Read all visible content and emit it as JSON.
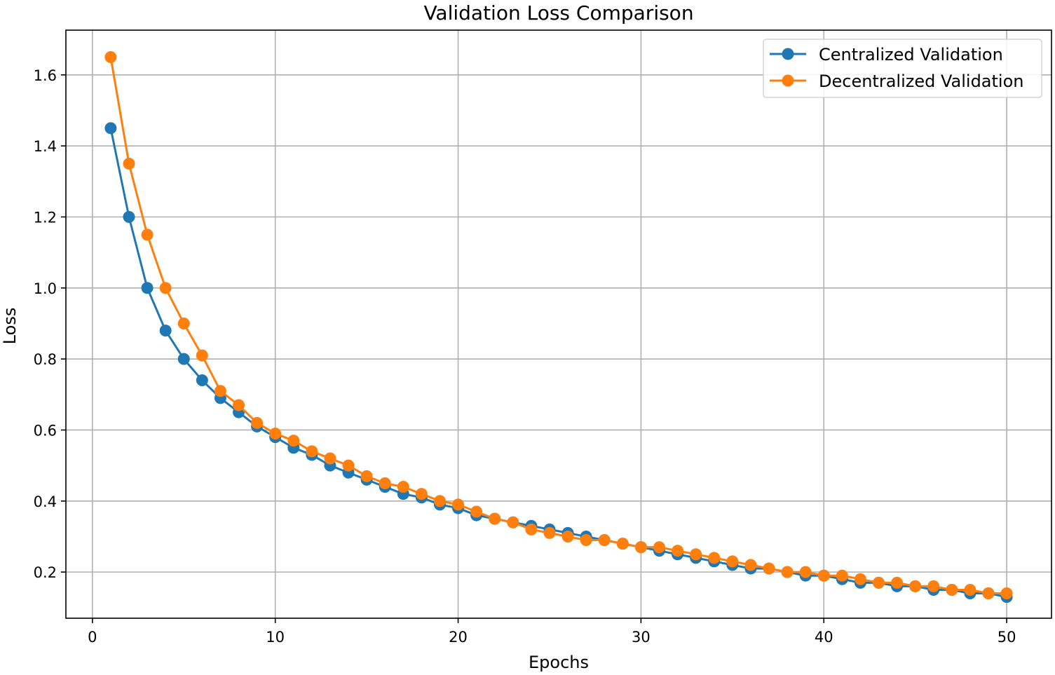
{
  "chart_data": {
    "type": "line",
    "title": "Validation Loss Comparison",
    "xlabel": "Epochs",
    "ylabel": "Loss",
    "xlim": [
      -1.45,
      52.45
    ],
    "ylim": [
      0.07,
      1.726
    ],
    "xticks": [
      0,
      10,
      20,
      30,
      40,
      50
    ],
    "xtick_labels": [
      "0",
      "10",
      "20",
      "30",
      "40",
      "50"
    ],
    "yticks": [
      0.2,
      0.4,
      0.6,
      0.8,
      1.0,
      1.2,
      1.4,
      1.6
    ],
    "ytick_labels": [
      "0.2",
      "0.4",
      "0.6",
      "0.8",
      "1.0",
      "1.2",
      "1.4",
      "1.6"
    ],
    "grid": true,
    "legend_position": "top-right",
    "x": [
      1,
      2,
      3,
      4,
      5,
      6,
      7,
      8,
      9,
      10,
      11,
      12,
      13,
      14,
      15,
      16,
      17,
      18,
      19,
      20,
      21,
      22,
      23,
      24,
      25,
      26,
      27,
      28,
      29,
      30,
      31,
      32,
      33,
      34,
      35,
      36,
      37,
      38,
      39,
      40,
      41,
      42,
      43,
      44,
      45,
      46,
      47,
      48,
      49,
      50
    ],
    "series": [
      {
        "name": "Centralized Validation",
        "color": "#1f77b4",
        "values": [
          1.45,
          1.2,
          1.0,
          0.88,
          0.8,
          0.74,
          0.69,
          0.65,
          0.61,
          0.58,
          0.55,
          0.53,
          0.5,
          0.48,
          0.46,
          0.44,
          0.42,
          0.41,
          0.39,
          0.38,
          0.36,
          0.35,
          0.34,
          0.33,
          0.32,
          0.31,
          0.3,
          0.29,
          0.28,
          0.27,
          0.26,
          0.25,
          0.24,
          0.23,
          0.22,
          0.21,
          0.21,
          0.2,
          0.19,
          0.19,
          0.18,
          0.17,
          0.17,
          0.16,
          0.16,
          0.15,
          0.15,
          0.14,
          0.14,
          0.13
        ]
      },
      {
        "name": "Decentralized Validation",
        "color": "#ff7f0e",
        "values": [
          1.65,
          1.35,
          1.15,
          1.0,
          0.9,
          0.81,
          0.71,
          0.67,
          0.62,
          0.59,
          0.57,
          0.54,
          0.52,
          0.5,
          0.47,
          0.45,
          0.44,
          0.42,
          0.4,
          0.39,
          0.37,
          0.35,
          0.34,
          0.32,
          0.31,
          0.3,
          0.29,
          0.29,
          0.28,
          0.27,
          0.27,
          0.26,
          0.25,
          0.24,
          0.23,
          0.22,
          0.21,
          0.2,
          0.2,
          0.19,
          0.19,
          0.18,
          0.17,
          0.17,
          0.16,
          0.16,
          0.15,
          0.15,
          0.14,
          0.14
        ]
      }
    ]
  }
}
